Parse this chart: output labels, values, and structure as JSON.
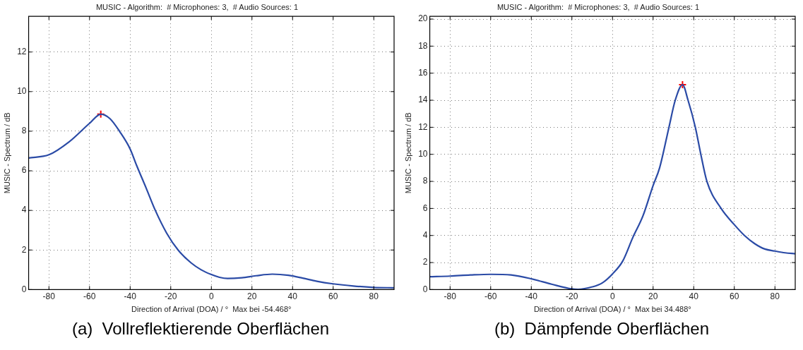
{
  "chart_data": [
    {
      "type": "line",
      "title": "MUSIC - Algorithm:  # Microphones: 3,  # Audio Sources: 1",
      "xlabel": "Direction of Arrival (DOA) / °  Max bei -54.468°",
      "ylabel": "MUSIC - Spectrum / dB",
      "annotations": [
        "(a)  Vollreflektierende Oberflächen"
      ],
      "x": [
        -90,
        -80,
        -70,
        -60,
        -54.468,
        -50,
        -45,
        -40,
        -36.8,
        -32,
        -27.6,
        -22,
        -16.4,
        -10,
        -5,
        0,
        4,
        8,
        15,
        22,
        30,
        38,
        45,
        52,
        60,
        70,
        80,
        90
      ],
      "series": [
        {
          "type": "line",
          "color": "#2b4ba6",
          "marker": "none",
          "values": [
            6.65,
            6.81,
            7.47,
            8.4,
            8.86,
            8.64,
            7.96,
            7.1,
            6.27,
            5.1,
            4.0,
            2.85,
            2.0,
            1.35,
            1.0,
            0.76,
            0.62,
            0.56,
            0.6,
            0.7,
            0.78,
            0.72,
            0.58,
            0.42,
            0.29,
            0.18,
            0.11,
            0.09
          ]
        },
        {
          "type": "scatter",
          "color": "#ff0000",
          "marker": "cross",
          "x": [
            -54.468
          ],
          "values": [
            8.86
          ]
        }
      ],
      "xlim": [
        -90,
        90
      ],
      "xticks": [
        -80,
        -60,
        -40,
        -20,
        0,
        20,
        40,
        60,
        80
      ],
      "ylim": [
        0,
        13.8
      ],
      "yticks": [
        0,
        2,
        4,
        6,
        8,
        10,
        12
      ],
      "grid": true,
      "line_style": "solid",
      "legend": false
    },
    {
      "type": "line",
      "title": "MUSIC - Algorithm:  # Microphones: 3,  # Audio Sources: 1",
      "xlabel": "Direction of Arrival (DOA) / °  Max bei 34.488°",
      "ylabel": "MUSIC - Spectrum / dB",
      "annotations": [
        "(b)  Dämpfende Oberflächen"
      ],
      "x": [
        -90,
        -80,
        -70,
        -60,
        -50,
        -40,
        -30,
        -20,
        -17,
        -10,
        -5,
        0,
        5,
        10,
        15,
        20,
        23.2,
        27.8,
        30.9,
        34.488,
        37.2,
        40.8,
        43.5,
        46.5,
        53.5,
        60,
        65,
        70,
        75,
        80,
        85,
        90
      ],
      "series": [
        {
          "type": "line",
          "color": "#2b4ba6",
          "marker": "none",
          "values": [
            0.95,
            1.0,
            1.08,
            1.13,
            1.08,
            0.8,
            0.4,
            0.05,
            0.02,
            0.2,
            0.5,
            1.16,
            2.1,
            3.85,
            5.45,
            7.7,
            9,
            12,
            14,
            15.15,
            14,
            12,
            10,
            8,
            6,
            4.8,
            4,
            3.4,
            3.0,
            2.85,
            2.72,
            2.65
          ]
        },
        {
          "type": "scatter",
          "color": "#ff0000",
          "marker": "cross",
          "x": [
            34.488
          ],
          "values": [
            15.15
          ]
        }
      ],
      "xlim": [
        -90,
        90
      ],
      "xticks": [
        -80,
        -60,
        -40,
        -20,
        0,
        20,
        40,
        60,
        80
      ],
      "ylim": [
        0,
        20.2
      ],
      "yticks": [
        0,
        2,
        4,
        6,
        8,
        10,
        12,
        14,
        16,
        18,
        20
      ],
      "grid": true,
      "line_style": "solid",
      "legend": false
    }
  ]
}
